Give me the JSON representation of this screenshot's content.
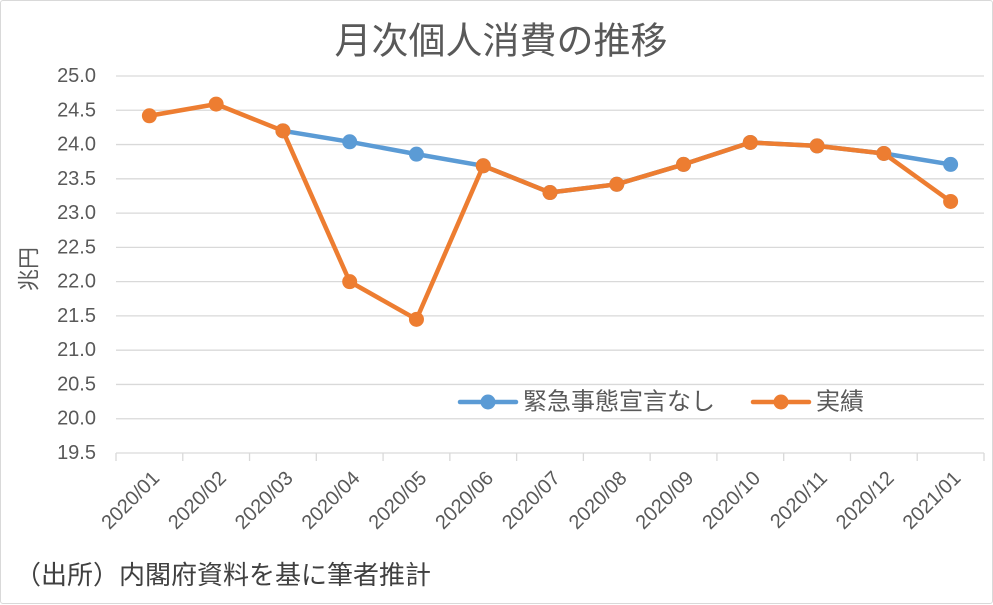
{
  "chart_data": {
    "type": "line",
    "title": "月次個人消費の推移",
    "xlabel": "",
    "ylabel": "兆円",
    "ylim": [
      19.5,
      25.0
    ],
    "y_ticks": [
      "25.0",
      "24.5",
      "24.0",
      "23.5",
      "23.0",
      "22.5",
      "22.0",
      "21.5",
      "21.0",
      "20.5",
      "20.0",
      "19.5"
    ],
    "categories": [
      "2020/01",
      "2020/02",
      "2020/03",
      "2020/04",
      "2020/05",
      "2020/06",
      "2020/07",
      "2020/08",
      "2020/09",
      "2020/10",
      "2020/11",
      "2020/12",
      "2021/01"
    ],
    "series": [
      {
        "name": "緊急事態宣言なし",
        "color": "#5B9BD5",
        "values": [
          null,
          null,
          24.2,
          24.04,
          23.86,
          23.69,
          23.3,
          23.42,
          23.71,
          24.03,
          23.98,
          23.87,
          23.71
        ]
      },
      {
        "name": "実績",
        "color": "#ED7D31",
        "values": [
          24.42,
          24.59,
          24.2,
          22.0,
          21.45,
          23.69,
          23.3,
          23.42,
          23.71,
          24.03,
          23.98,
          23.87,
          23.17
        ]
      }
    ],
    "grid": "horizontal",
    "legend": "inside-bottom-right"
  },
  "source_note": "（出所）内閣府資料を基に筆者推計"
}
